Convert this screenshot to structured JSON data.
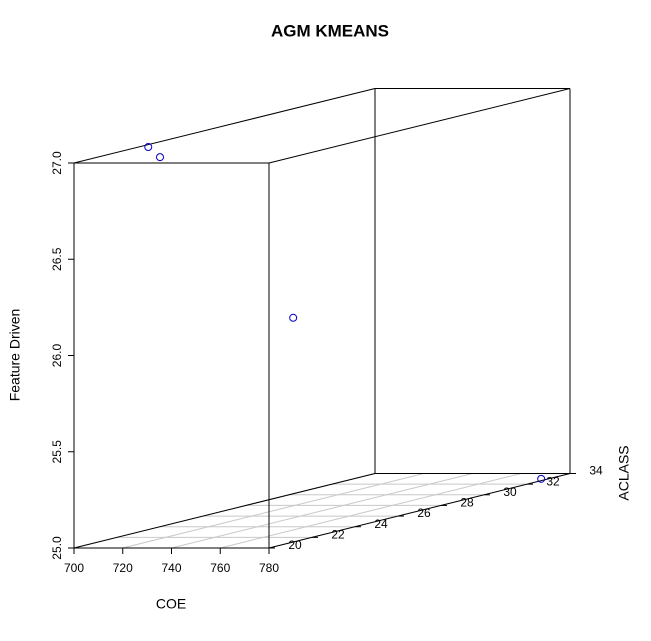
{
  "chart_data": {
    "type": "scatter3d",
    "title": "AGM KMEANS",
    "xlabel": "COE",
    "ylabel": "Feature Driven",
    "zlabel": "ACLASS",
    "x": [
      704,
      700,
      737,
      777
    ],
    "y": [
      27.0,
      26.92,
      26.03,
      25.0
    ],
    "z": [
      23,
      24,
      26,
      33
    ],
    "color": "#0000cc",
    "xlim": [
      700,
      780
    ],
    "xticks": [
      700,
      720,
      740,
      760,
      780
    ],
    "ylim": [
      25,
      27
    ],
    "yticks": [
      {
        "value": 25,
        "label": "25.0"
      },
      {
        "value": 25.5,
        "label": "25.5"
      },
      {
        "value": 26,
        "label": "26.0"
      },
      {
        "value": 26.5,
        "label": "26.5"
      },
      {
        "value": 27,
        "label": "27.0"
      }
    ],
    "zlim": [
      20,
      34
    ],
    "zticks": [
      20,
      22,
      24,
      26,
      28,
      30,
      32,
      34
    ],
    "grid": true
  }
}
